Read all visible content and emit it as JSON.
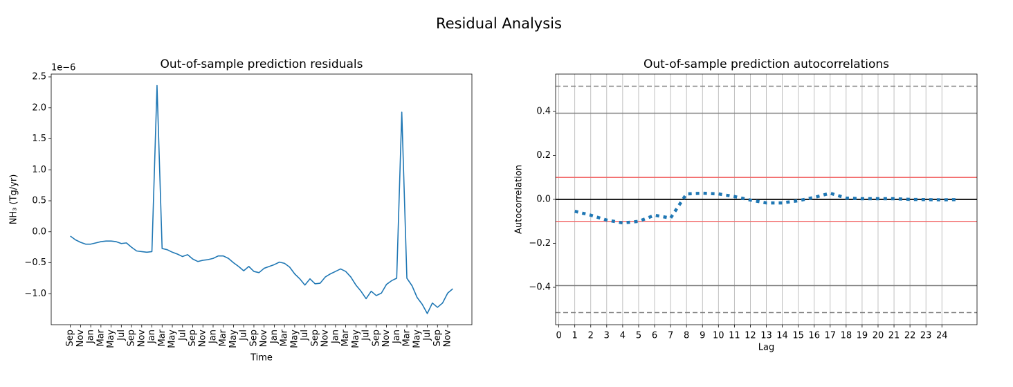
{
  "title": "Residual Analysis",
  "chart_data": [
    {
      "type": "line",
      "title": "Out-of-sample prediction residuals",
      "x_label": "Time",
      "y_label": "NH₃ (Tg/yr)",
      "y_offset_label": "1e−6",
      "categories": [
        "Sep",
        null,
        "Nov",
        null,
        "Jan",
        null,
        "Mar",
        null,
        "May",
        null,
        "Jul",
        null,
        "Sep",
        null,
        "Nov",
        null,
        "Jan",
        null,
        "Mar",
        null,
        "May",
        null,
        "Jul",
        null,
        "Sep",
        null,
        "Nov",
        null,
        "Jan",
        null,
        "Mar",
        null,
        "May",
        null,
        "Jul",
        null,
        "Sep",
        null,
        "Nov",
        null,
        "Jan",
        null,
        "Mar",
        null,
        "May",
        null,
        "Jul",
        null,
        "Sep",
        null,
        "Nov",
        null,
        "Jan",
        null,
        "Mar",
        null,
        "May",
        null,
        "Jul",
        null,
        "Sep",
        null,
        "Nov",
        null,
        "Jan",
        null,
        "Mar",
        null,
        "May",
        null,
        "Jul",
        null,
        "Sep",
        null,
        "Nov",
        null
      ],
      "values": [
        -0.07,
        -0.13,
        -0.17,
        -0.2,
        -0.2,
        -0.18,
        -0.16,
        -0.15,
        -0.15,
        -0.16,
        -0.19,
        -0.18,
        -0.25,
        -0.31,
        -0.32,
        -0.33,
        -0.32,
        2.36,
        -0.27,
        -0.29,
        -0.33,
        -0.36,
        -0.4,
        -0.37,
        -0.44,
        -0.48,
        -0.46,
        -0.45,
        -0.43,
        -0.39,
        -0.39,
        -0.43,
        -0.5,
        -0.56,
        -0.63,
        -0.56,
        -0.64,
        -0.66,
        -0.59,
        -0.56,
        -0.53,
        -0.49,
        -0.51,
        -0.57,
        -0.68,
        -0.76,
        -0.86,
        -0.76,
        -0.84,
        -0.83,
        -0.73,
        -0.68,
        -0.64,
        -0.6,
        -0.64,
        -0.73,
        -0.86,
        -0.96,
        -1.08,
        -0.96,
        -1.03,
        -0.99,
        -0.85,
        -0.79,
        -0.75,
        1.93,
        -0.75,
        -0.87,
        -1.06,
        -1.17,
        -1.32,
        -1.15,
        -1.22,
        -1.15,
        -0.99,
        -0.92
      ],
      "color": "#1f77b4",
      "ylim": [
        -1.5,
        2.545
      ],
      "yticks": [
        {
          "value": -1.0,
          "label": "−1.0"
        },
        {
          "value": -0.5,
          "label": "−0.5"
        },
        {
          "value": 0.0,
          "label": "0.0"
        },
        0.5,
        {
          "value": 1.0,
          "label": "1.0"
        },
        1.5,
        {
          "value": 2.0,
          "label": "2.0"
        },
        2.5
      ]
    },
    {
      "type": "line",
      "title": "Out-of-sample prediction autocorrelations",
      "x_label": "Lag",
      "y_label": "Autocorrelation",
      "x": [
        1,
        2,
        3,
        4,
        5,
        6,
        7,
        8,
        9,
        10,
        11,
        12,
        13,
        14,
        15,
        16,
        17,
        18,
        19,
        20,
        21,
        22,
        23,
        24,
        25
      ],
      "values": [
        -0.054,
        -0.072,
        -0.094,
        -0.107,
        -0.1,
        -0.072,
        -0.085,
        0.025,
        0.028,
        0.025,
        0.013,
        -0.003,
        -0.016,
        -0.016,
        -0.006,
        0.009,
        0.028,
        0.006,
        0.003,
        0.003,
        0.003,
        0.0,
        -0.001,
        -0.002,
        -0.001
      ],
      "color": "#1f77b4",
      "line_style": "dotted",
      "xlim": [
        -0.2,
        26.2
      ],
      "xticks": [
        0,
        1,
        2,
        3,
        4,
        5,
        6,
        7,
        8,
        9,
        10,
        11,
        12,
        13,
        14,
        15,
        16,
        17,
        18,
        19,
        20,
        21,
        22,
        23,
        24
      ],
      "ylim": [
        -0.57,
        0.57
      ],
      "yticks": [
        {
          "value": -0.4,
          "label": "−0.4"
        },
        {
          "value": -0.2,
          "label": "−0.2"
        },
        {
          "value": 0.0,
          "label": "0.0"
        },
        0.2,
        0.4
      ],
      "grid": "x",
      "reference_lines": [
        {
          "value": 0.515,
          "color": "#808080",
          "style": "dashed"
        },
        {
          "value": 0.392,
          "color": "#808080",
          "style": "solid"
        },
        {
          "value": 0.1,
          "color": "#f26b6b",
          "style": "solid"
        },
        {
          "value": 0.0,
          "color": "#000000",
          "style": "solid"
        },
        {
          "value": -0.1,
          "color": "#f26b6b",
          "style": "solid"
        },
        {
          "value": -0.392,
          "color": "#808080",
          "style": "solid"
        },
        {
          "value": -0.515,
          "color": "#808080",
          "style": "dashed"
        }
      ]
    }
  ]
}
